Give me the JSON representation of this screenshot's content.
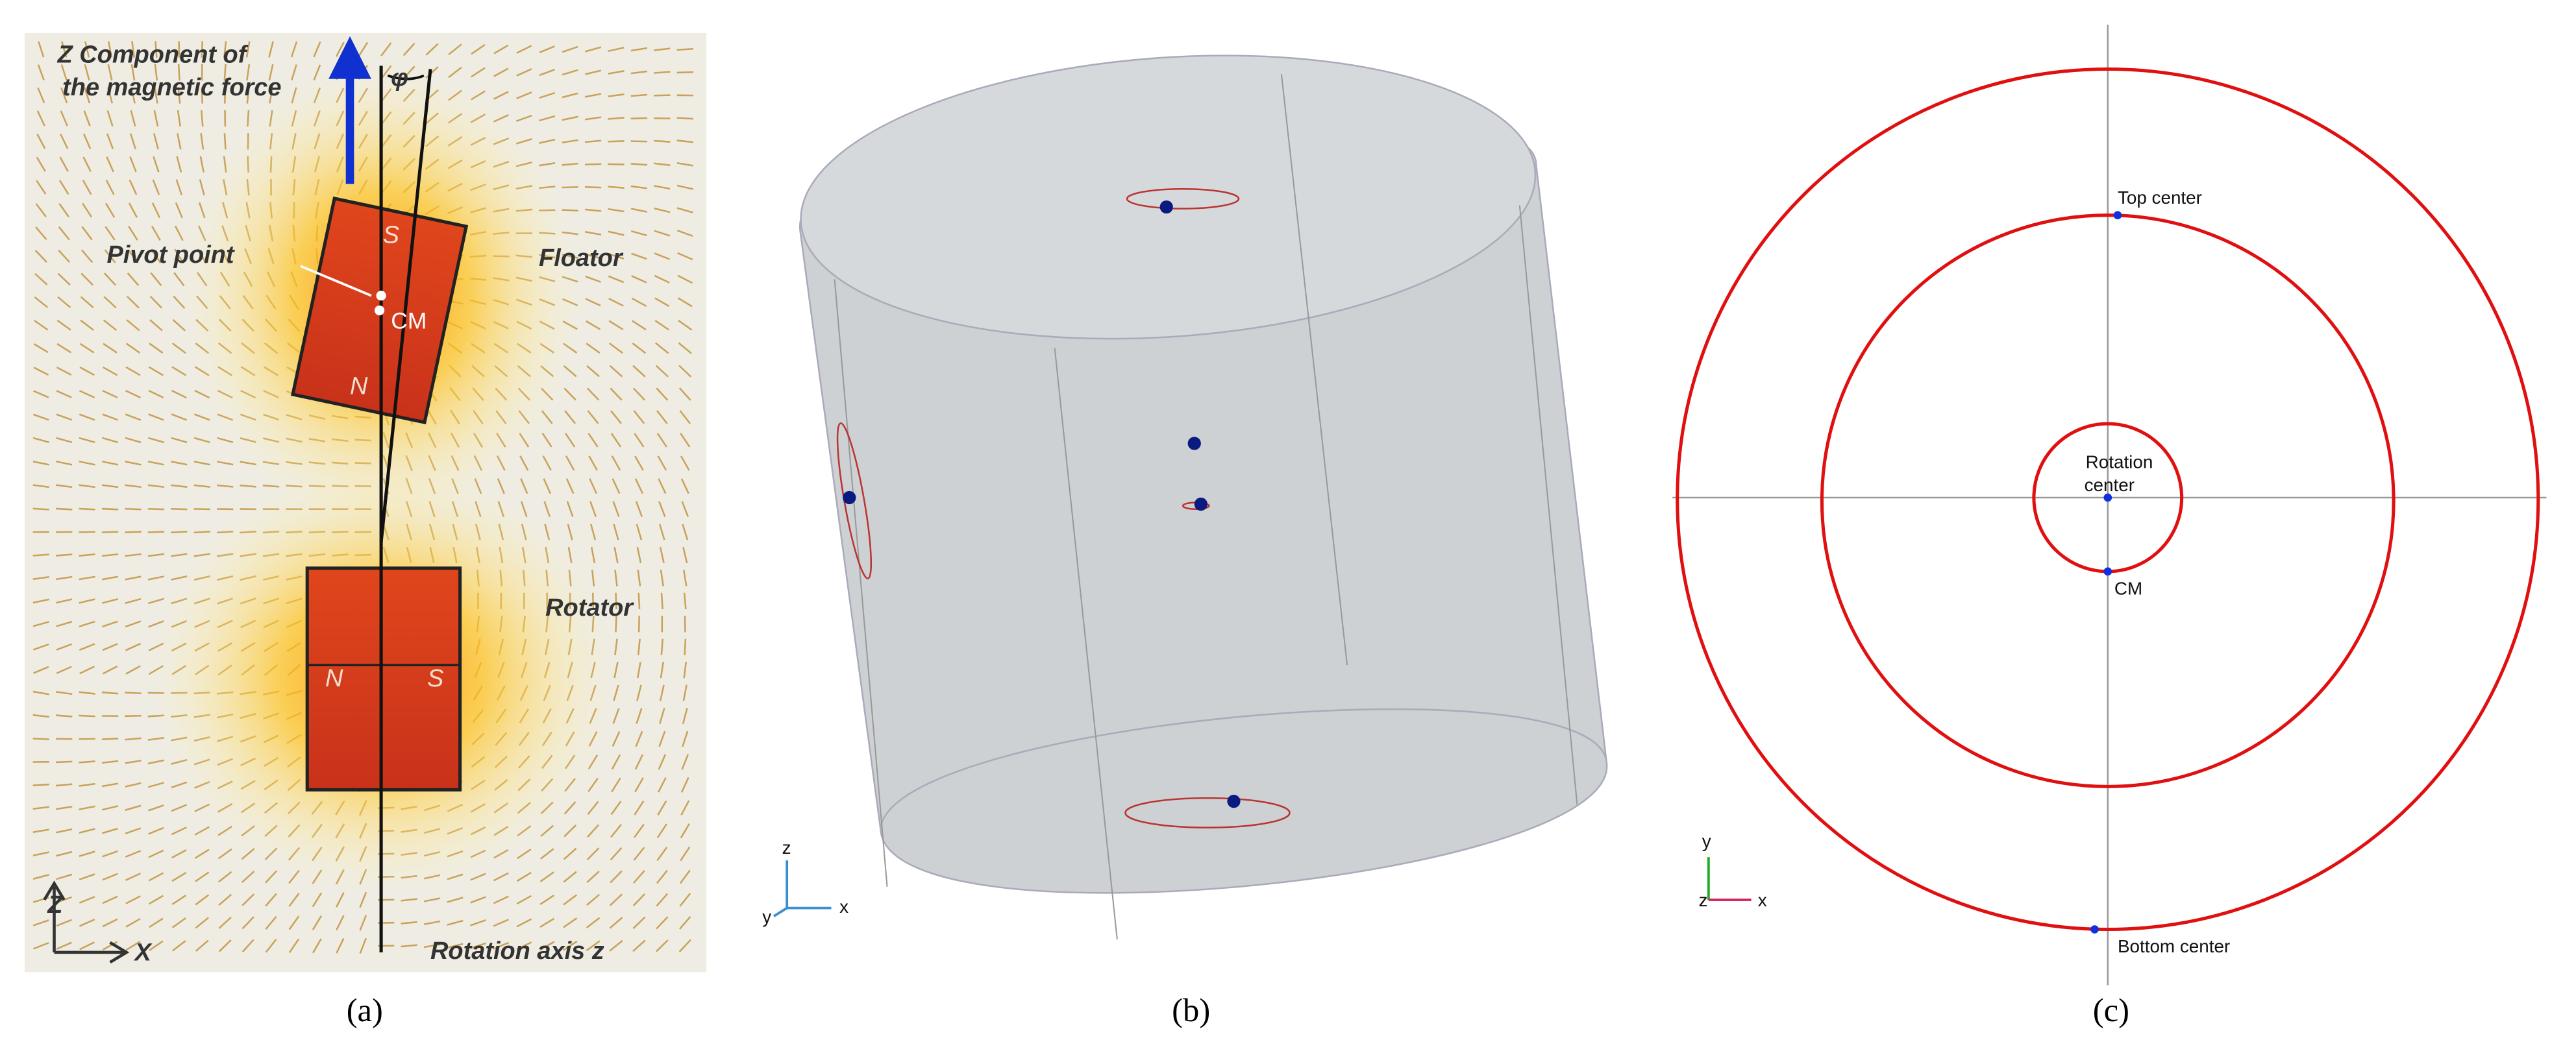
{
  "panels": [
    {
      "label": "(a)",
      "title_lines": [
        "Z Component of",
        "the magnetic force"
      ],
      "angle": "φ",
      "pivot": "Pivot point",
      "floator": "Floator",
      "floator_poles": [
        "S",
        "N"
      ],
      "cm": "CM",
      "rotator": "Rotator",
      "rotator_poles": [
        "N",
        "S"
      ],
      "axes": [
        "Z",
        "X"
      ],
      "axis_label": "Rotation axis z"
    },
    {
      "label": "(b)",
      "axes": [
        "z",
        "y",
        "x"
      ]
    },
    {
      "label": "(c)",
      "top": "Top center",
      "rotation_lines": [
        "Rotation",
        "center"
      ],
      "cm": "CM",
      "bottom": "Bottom center",
      "axes": [
        "y",
        "z",
        "x"
      ]
    }
  ]
}
